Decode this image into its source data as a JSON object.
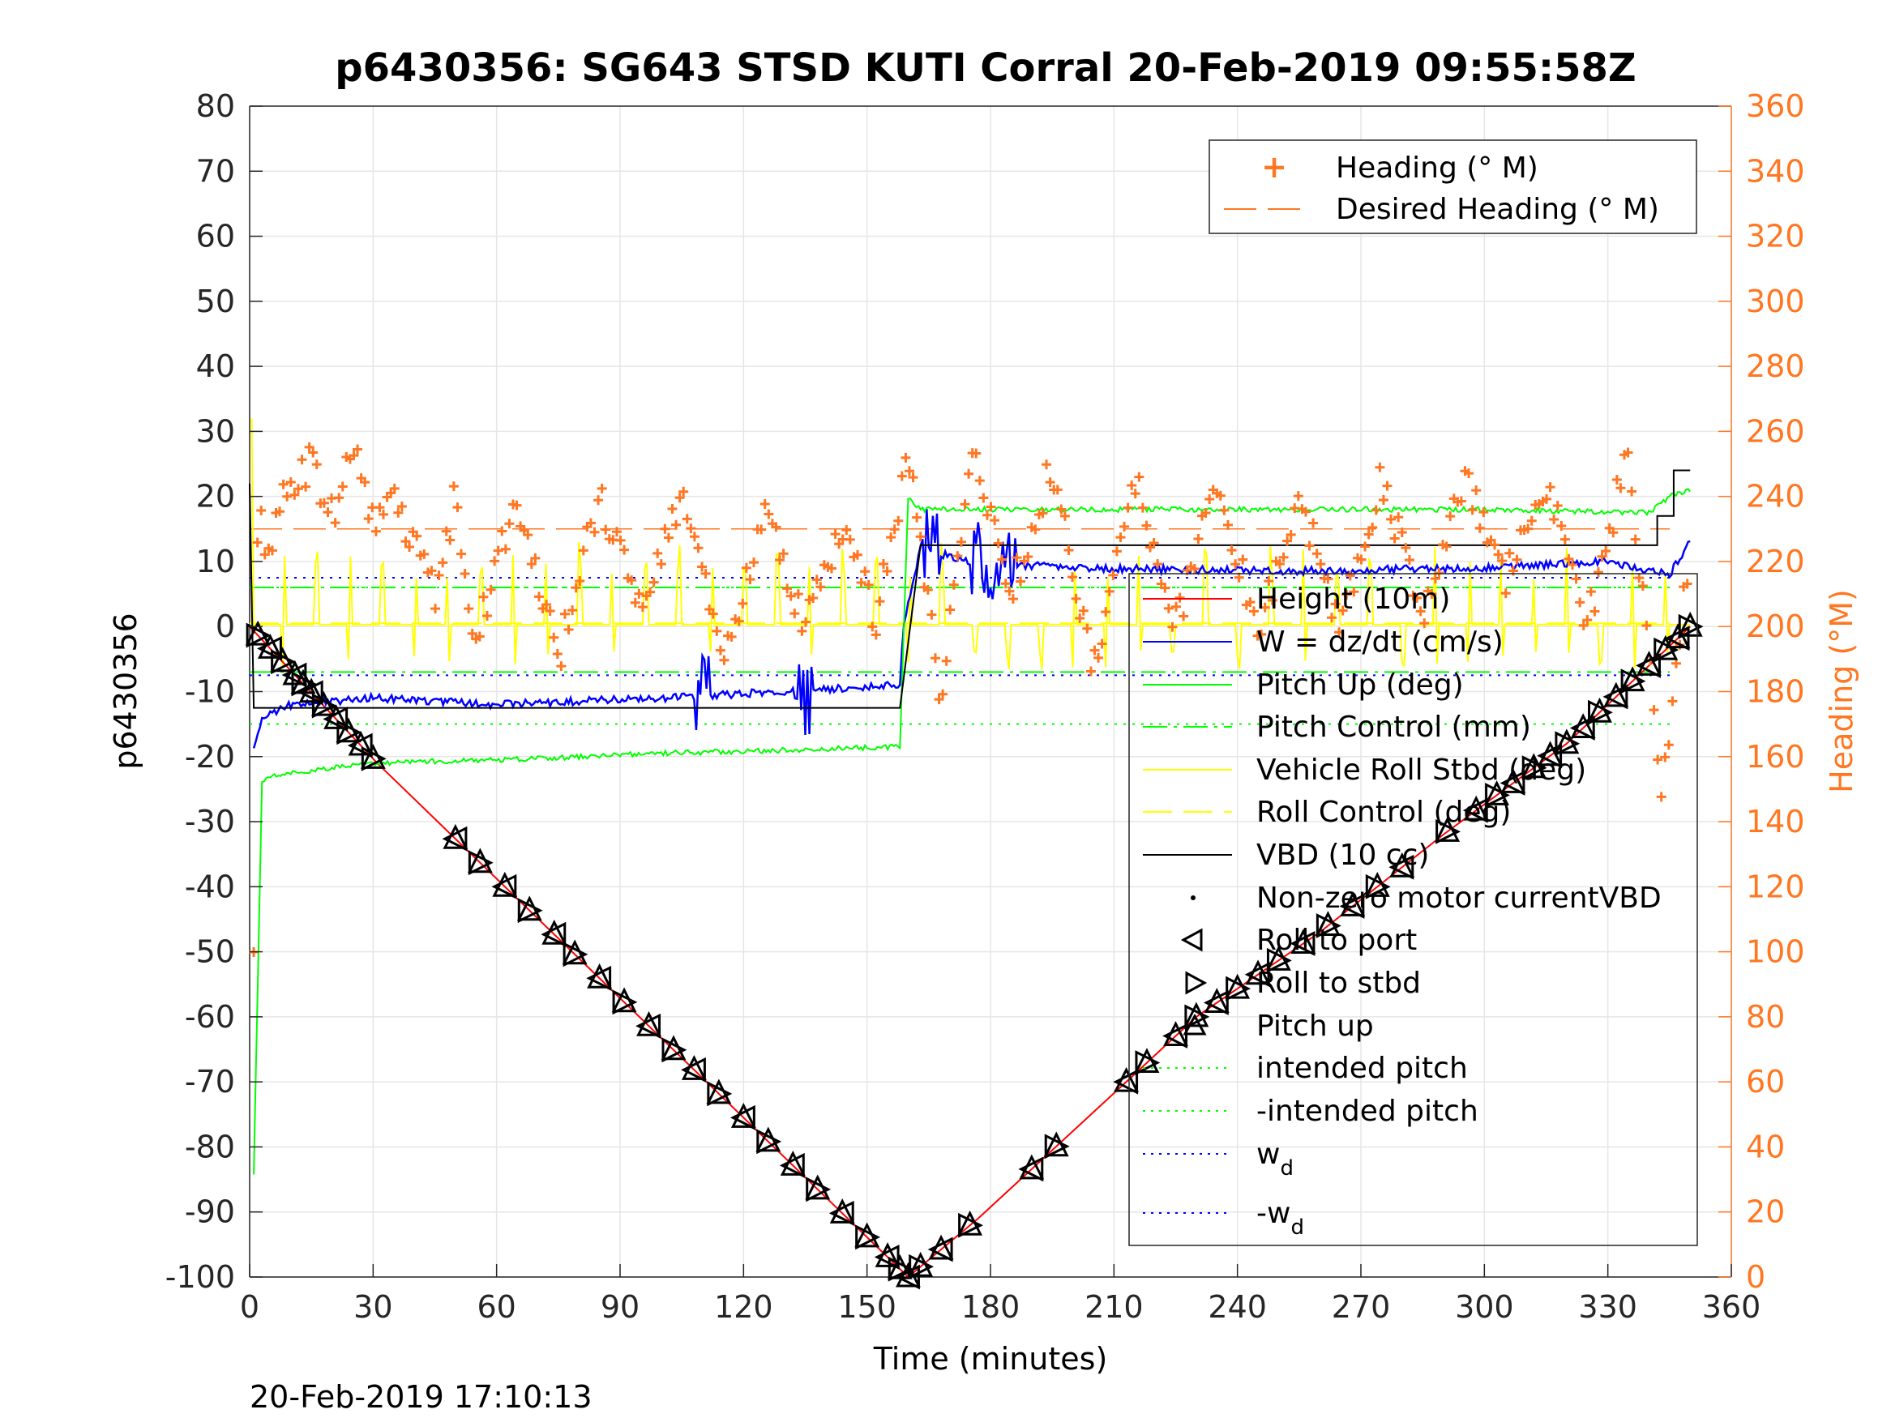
{
  "chart_data": {
    "type": "line",
    "title": "p6430356: SG643 STSD KUTI Corral 20-Feb-2019 09:55:58Z",
    "xlabel": "Time (minutes)",
    "ylabel": "p6430356",
    "y2label": "Heading (°M)",
    "footer": "20-Feb-2019 17:10:13",
    "xlim": [
      0,
      360
    ],
    "ylim": [
      -100,
      80
    ],
    "y2lim": [
      0,
      360
    ],
    "xticks": [
      0,
      30,
      60,
      90,
      120,
      150,
      180,
      210,
      240,
      270,
      300,
      330,
      360
    ],
    "yticks": [
      -100,
      -90,
      -80,
      -70,
      -60,
      -50,
      -40,
      -30,
      -20,
      -10,
      0,
      10,
      20,
      30,
      40,
      50,
      60,
      70,
      80
    ],
    "y2ticks": [
      0,
      20,
      40,
      60,
      80,
      100,
      120,
      140,
      160,
      180,
      200,
      220,
      240,
      260,
      280,
      300,
      320,
      340,
      360
    ],
    "grid": true,
    "colors": {
      "height": "#ff0000",
      "w": "#0000ff",
      "pitch": "#00ff00",
      "roll": "#ffff00",
      "vbd": "#000000",
      "heading": "#ff7722"
    },
    "legend_right": {
      "placement": "top-right",
      "entries": [
        "Heading (° M)",
        "Desired Heading (° M)"
      ]
    },
    "legend_main": {
      "placement": "center-right",
      "entries": [
        {
          "label": "Height (10m)",
          "style": "red-line"
        },
        {
          "label": "W = dz/dt (cm/s)",
          "style": "blue-line"
        },
        {
          "label": "Pitch Up (deg)",
          "style": "green-line"
        },
        {
          "label": "Pitch Control (mm)",
          "style": "green-dashdot"
        },
        {
          "label": "Vehicle Roll Stbd (deg)",
          "style": "yellow-line"
        },
        {
          "label": "Roll Control (deg)",
          "style": "yellow-dash"
        },
        {
          "label": "VBD (10 cc)",
          "style": "black-line"
        },
        {
          "label": "Non-zero motor currentVBD",
          "style": "black-dot"
        },
        {
          "label": "Roll to port",
          "style": "left-triangle"
        },
        {
          "label": "Roll to stbd",
          "style": "right-triangle"
        },
        {
          "label": "Pitch up",
          "style": "up-triangle"
        },
        {
          "label": "intended pitch",
          "style": "green-dotted"
        },
        {
          "label": "-intended pitch",
          "style": "green-dotted"
        },
        {
          "label": "w",
          "sub": "d",
          "style": "blue-dotted"
        },
        {
          "label": "-w",
          "sub": "d",
          "style": "blue-dotted"
        }
      ]
    },
    "series": [
      {
        "name": "Height (10m)",
        "axis": "left",
        "x": [
          0,
          31,
          160,
          177,
          213,
          230,
          260,
          290,
          320,
          350
        ],
        "y": [
          0,
          -21,
          -100,
          -91,
          -70,
          -60,
          -47,
          -32,
          -18,
          0
        ]
      },
      {
        "name": "W = dz/dt (cm/s)",
        "axis": "left",
        "x": [
          1,
          3,
          10,
          30,
          60,
          100,
          130,
          158,
          159,
          163,
          175,
          200,
          250,
          300,
          330,
          345,
          350
        ],
        "y": [
          -19,
          -14,
          -12,
          -11,
          -12,
          -11,
          -10,
          -9,
          1,
          12,
          10,
          9,
          8.5,
          9,
          10,
          8,
          13
        ]
      },
      {
        "name": "Pitch Up (deg)",
        "axis": "left",
        "x": [
          1,
          3,
          5,
          10,
          30,
          60,
          100,
          130,
          158,
          160,
          163,
          200,
          250,
          300,
          340,
          345,
          350
        ],
        "y": [
          -84,
          -24,
          -23,
          -22.5,
          -21,
          -20.5,
          -19.5,
          -19,
          -18.5,
          20,
          18,
          18,
          18,
          18,
          17.5,
          20,
          21
        ]
      },
      {
        "name": "VBD (10 cc)",
        "axis": "left",
        "x": [
          0,
          1,
          158,
          163,
          340,
          342,
          346,
          350
        ],
        "y": [
          22,
          -12.5,
          -12.5,
          12.5,
          12.5,
          17,
          24,
          24
        ]
      },
      {
        "name": "Heading (° M)",
        "axis": "right",
        "x": [
          1,
          2,
          4,
          8,
          15,
          20,
          26,
          30,
          35,
          45,
          50,
          55,
          65,
          75,
          85,
          95,
          105,
          115,
          125,
          135,
          145,
          152,
          160,
          168,
          175,
          185,
          195,
          205,
          215,
          225,
          235,
          245,
          255,
          265,
          275,
          285,
          295,
          305,
          315,
          325,
          335,
          343,
          350
        ],
        "y": [
          100,
          240,
          215,
          240,
          250,
          235,
          255,
          230,
          240,
          210,
          240,
          195,
          240,
          190,
          240,
          205,
          240,
          190,
          235,
          200,
          235,
          200,
          255,
          175,
          255,
          210,
          250,
          185,
          245,
          200,
          245,
          200,
          240,
          200,
          245,
          205,
          245,
          215,
          245,
          200,
          255,
          150,
          225
        ]
      }
    ],
    "markers": {
      "descent_times": [
        2,
        5,
        8,
        11,
        13,
        15,
        18,
        21,
        24,
        27,
        30,
        50,
        56,
        62,
        68,
        74,
        79,
        85,
        91,
        97,
        103,
        108,
        114,
        120,
        126,
        132,
        138,
        144,
        150,
        155,
        158,
        160,
        163
      ],
      "ascent_times": [
        168,
        175,
        190,
        196,
        213,
        218,
        225,
        230,
        235,
        240,
        245,
        250,
        256,
        262,
        268,
        274,
        280,
        291,
        298,
        303,
        307,
        312,
        316,
        320,
        324,
        328,
        332,
        336,
        340,
        344,
        347,
        350
      ]
    },
    "reference_lines": {
      "intended_pitch": [
        6,
        -15
      ],
      "pitch_control": [
        -7,
        6
      ],
      "roll_control": [
        0.5
      ],
      "wd": [
        7.5,
        -7.5
      ],
      "desired_heading": 230
    }
  }
}
